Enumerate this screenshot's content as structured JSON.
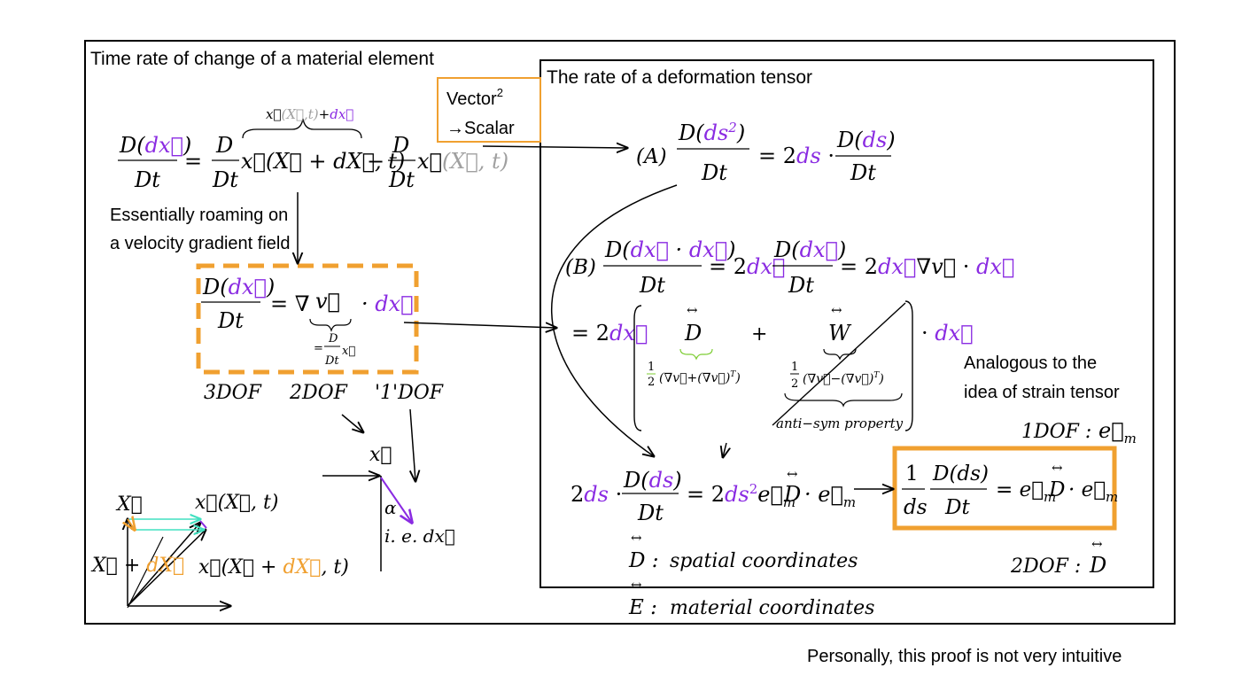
{
  "colors": {
    "purple": "#8a2be2",
    "orange": "#f0a030",
    "green": "#7ccd32",
    "gray": "#a0a0a0",
    "cyan": "#40e0c0",
    "black": "#000000"
  },
  "left_panel": {
    "title": "Time rate of change of a material element",
    "note_line1": "Essentially roaming on",
    "note_line2": "a velocity gradient field",
    "dof": {
      "three": "3DOF",
      "two": "2DOF",
      "one": "'1'DOF"
    },
    "vector_label": "Vector",
    "vector_exp": "2",
    "scalar_label": "→Scalar"
  },
  "right_panel": {
    "title": "The rate of a deformation tensor",
    "analogy_line1": "Analogous to the",
    "analogy_line2": "idea of strain tensor",
    "label_a": "(A)",
    "label_b": "(B)",
    "spatial": "spatial coordinates",
    "material": "material coordinates",
    "anti_sym": "anti−sym property",
    "dof1": "1DOF :",
    "dof2": "2DOF :"
  },
  "footer": "Personally, this proof is not very intuitive"
}
